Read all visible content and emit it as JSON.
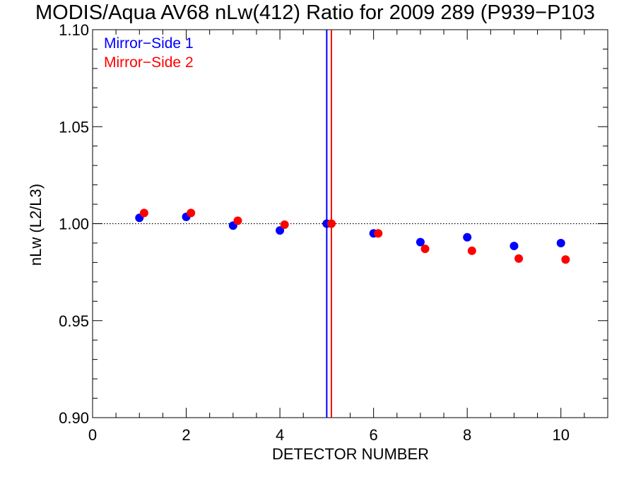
{
  "chart_data": {
    "type": "scatter",
    "title": "MODIS/Aqua AV68 nLw(412) Ratio for 2009 289 (P939−P103",
    "xlabel": "DETECTOR NUMBER",
    "ylabel": "nLw (L2/L3)",
    "xlim": [
      0,
      11
    ],
    "ylim": [
      0.9,
      1.1
    ],
    "x_ticks": [
      0,
      2,
      4,
      6,
      8,
      10
    ],
    "x_tick_labels": [
      "0",
      "2",
      "4",
      "6",
      "8",
      "10"
    ],
    "y_ticks": [
      0.9,
      0.95,
      1.0,
      1.05,
      1.1
    ],
    "y_tick_labels": [
      "0.90",
      "0.95",
      "1.00",
      "1.05",
      "1.10"
    ],
    "reference_line_y": 1.0,
    "grid": false,
    "legend_position": "top-left",
    "series": [
      {
        "name": "Mirror−Side 1",
        "color": "#0000ff",
        "x": [
          1,
          2,
          3,
          4,
          5,
          6,
          7,
          8,
          9,
          10
        ],
        "y": [
          1.003,
          1.0035,
          0.999,
          0.9965,
          1.0,
          0.995,
          0.9905,
          0.993,
          0.9885,
          0.99
        ],
        "vline_x": 5.0
      },
      {
        "name": "Mirror−Side 2",
        "color": "#ff0000",
        "x": [
          1.1,
          2.1,
          3.1,
          4.1,
          5.1,
          6.1,
          7.1,
          8.1,
          9.1,
          10.1
        ],
        "y": [
          1.0055,
          1.0055,
          1.0015,
          0.9995,
          1.0,
          0.995,
          0.987,
          0.986,
          0.982,
          0.9815
        ],
        "vline_x": 5.1
      }
    ]
  }
}
